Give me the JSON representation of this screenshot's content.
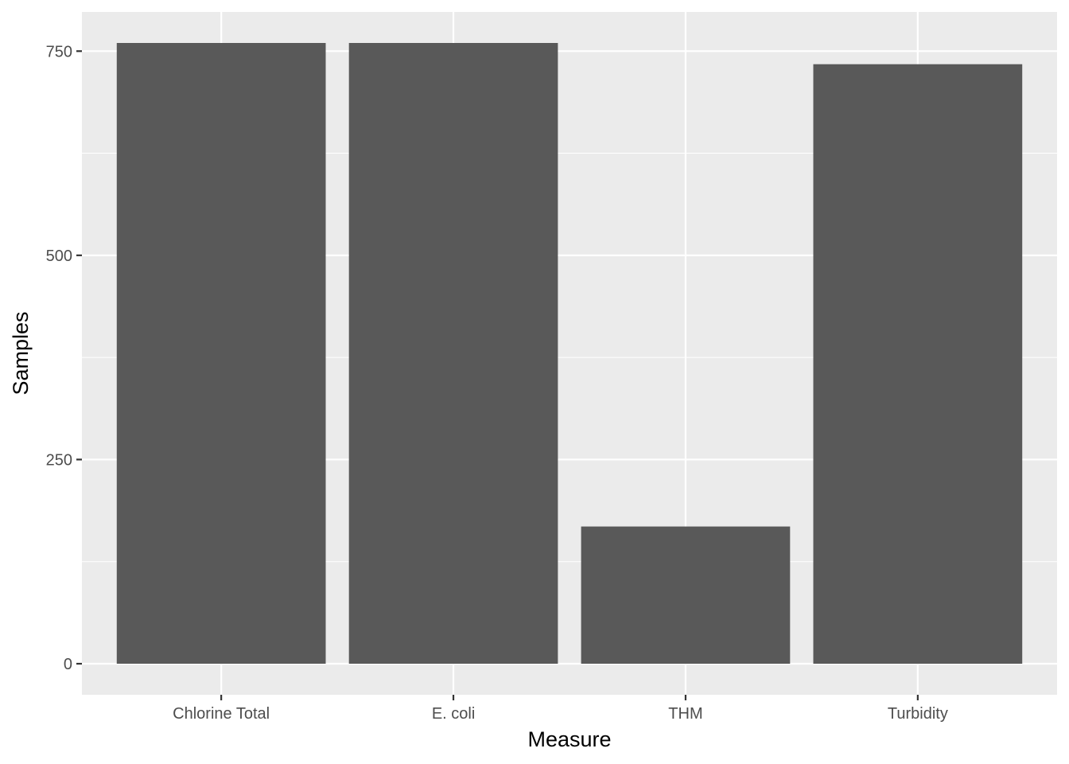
{
  "colors": {
    "panel_background": "#EBEBEB",
    "grid_major": "#FFFFFF",
    "grid_minor": "#F5F5F5",
    "bar_fill": "#595959",
    "tick_text": "#4D4D4D",
    "tick_mark": "#333333",
    "axis_title": "#000000"
  },
  "chart_data": {
    "type": "bar",
    "title": "",
    "xlabel": "Measure",
    "ylabel": "Samples",
    "categories": [
      "Chlorine Total",
      "E. coli",
      "THM",
      "Turbidity"
    ],
    "values": [
      760,
      760,
      168,
      734
    ],
    "ylim": [
      -38,
      798
    ],
    "yticks": [
      0,
      250,
      500,
      750
    ],
    "ytick_labels": [
      "0",
      "250",
      "500",
      "750"
    ],
    "grid": true,
    "legend": "none"
  }
}
